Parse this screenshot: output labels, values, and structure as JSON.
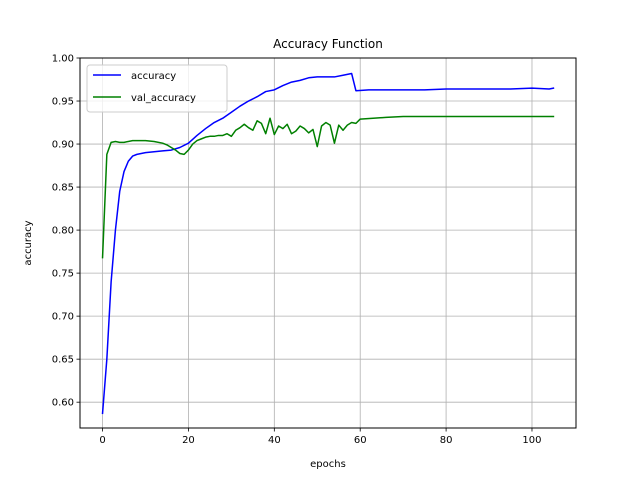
{
  "chart_data": {
    "type": "line",
    "title": "Accuracy Function",
    "xlabel": "epochs",
    "ylabel": "accuracy",
    "xlim": [
      -5.25,
      110.25
    ],
    "ylim": [
      0.57,
      1.0
    ],
    "xticks": [
      0,
      20,
      40,
      60,
      80,
      100
    ],
    "yticks": [
      0.6,
      0.65,
      0.7,
      0.75,
      0.8,
      0.85,
      0.9,
      0.95,
      1.0
    ],
    "xtick_labels": [
      "0",
      "20",
      "40",
      "60",
      "80",
      "100"
    ],
    "ytick_labels": [
      "0.60",
      "0.65",
      "0.70",
      "0.75",
      "0.80",
      "0.85",
      "0.90",
      "0.95",
      "1.00"
    ],
    "grid": true,
    "legend_position": "upper-left",
    "series": [
      {
        "name": "accuracy",
        "color": "#0000ff",
        "x": [
          0,
          1,
          2,
          3,
          4,
          5,
          6,
          7,
          8,
          9,
          10,
          12,
          14,
          16,
          18,
          20,
          22,
          24,
          26,
          28,
          30,
          32,
          34,
          36,
          38,
          40,
          42,
          44,
          46,
          48,
          50,
          52,
          54,
          56,
          58,
          59,
          62,
          66,
          70,
          75,
          80,
          85,
          90,
          95,
          100,
          104,
          105
        ],
        "y": [
          0.587,
          0.65,
          0.74,
          0.8,
          0.845,
          0.868,
          0.88,
          0.886,
          0.888,
          0.889,
          0.89,
          0.891,
          0.892,
          0.893,
          0.896,
          0.901,
          0.91,
          0.918,
          0.925,
          0.93,
          0.937,
          0.944,
          0.95,
          0.955,
          0.961,
          0.963,
          0.968,
          0.972,
          0.974,
          0.977,
          0.978,
          0.978,
          0.978,
          0.98,
          0.982,
          0.962,
          0.963,
          0.963,
          0.963,
          0.963,
          0.964,
          0.964,
          0.964,
          0.964,
          0.965,
          0.964,
          0.965
        ]
      },
      {
        "name": "val_accuracy",
        "color": "#008000",
        "x": [
          0,
          1,
          2,
          3,
          4,
          5,
          7,
          10,
          12,
          14,
          15,
          16,
          17,
          18,
          19,
          20,
          21,
          22,
          23,
          24,
          25,
          26,
          27,
          28,
          29,
          30,
          31,
          32,
          33,
          34,
          35,
          36,
          37,
          38,
          39,
          40,
          41,
          42,
          43,
          44,
          45,
          46,
          47,
          48,
          49,
          50,
          51,
          52,
          53,
          54,
          55,
          56,
          57,
          58,
          59,
          60,
          63,
          66,
          70,
          75,
          80,
          85,
          90,
          95,
          100,
          105
        ],
        "y": [
          0.768,
          0.888,
          0.902,
          0.903,
          0.902,
          0.902,
          0.904,
          0.904,
          0.903,
          0.901,
          0.899,
          0.896,
          0.893,
          0.889,
          0.888,
          0.893,
          0.9,
          0.904,
          0.906,
          0.908,
          0.909,
          0.909,
          0.91,
          0.91,
          0.912,
          0.909,
          0.916,
          0.919,
          0.923,
          0.919,
          0.916,
          0.927,
          0.924,
          0.912,
          0.93,
          0.911,
          0.921,
          0.918,
          0.923,
          0.912,
          0.915,
          0.921,
          0.918,
          0.913,
          0.917,
          0.897,
          0.921,
          0.925,
          0.922,
          0.901,
          0.922,
          0.916,
          0.922,
          0.925,
          0.924,
          0.929,
          0.93,
          0.931,
          0.932,
          0.932,
          0.932,
          0.932,
          0.932,
          0.932,
          0.932,
          0.932
        ]
      }
    ]
  },
  "colors": {
    "axes": "#000000",
    "grid": "#b0b0b0",
    "legend_border": "#cccccc"
  }
}
